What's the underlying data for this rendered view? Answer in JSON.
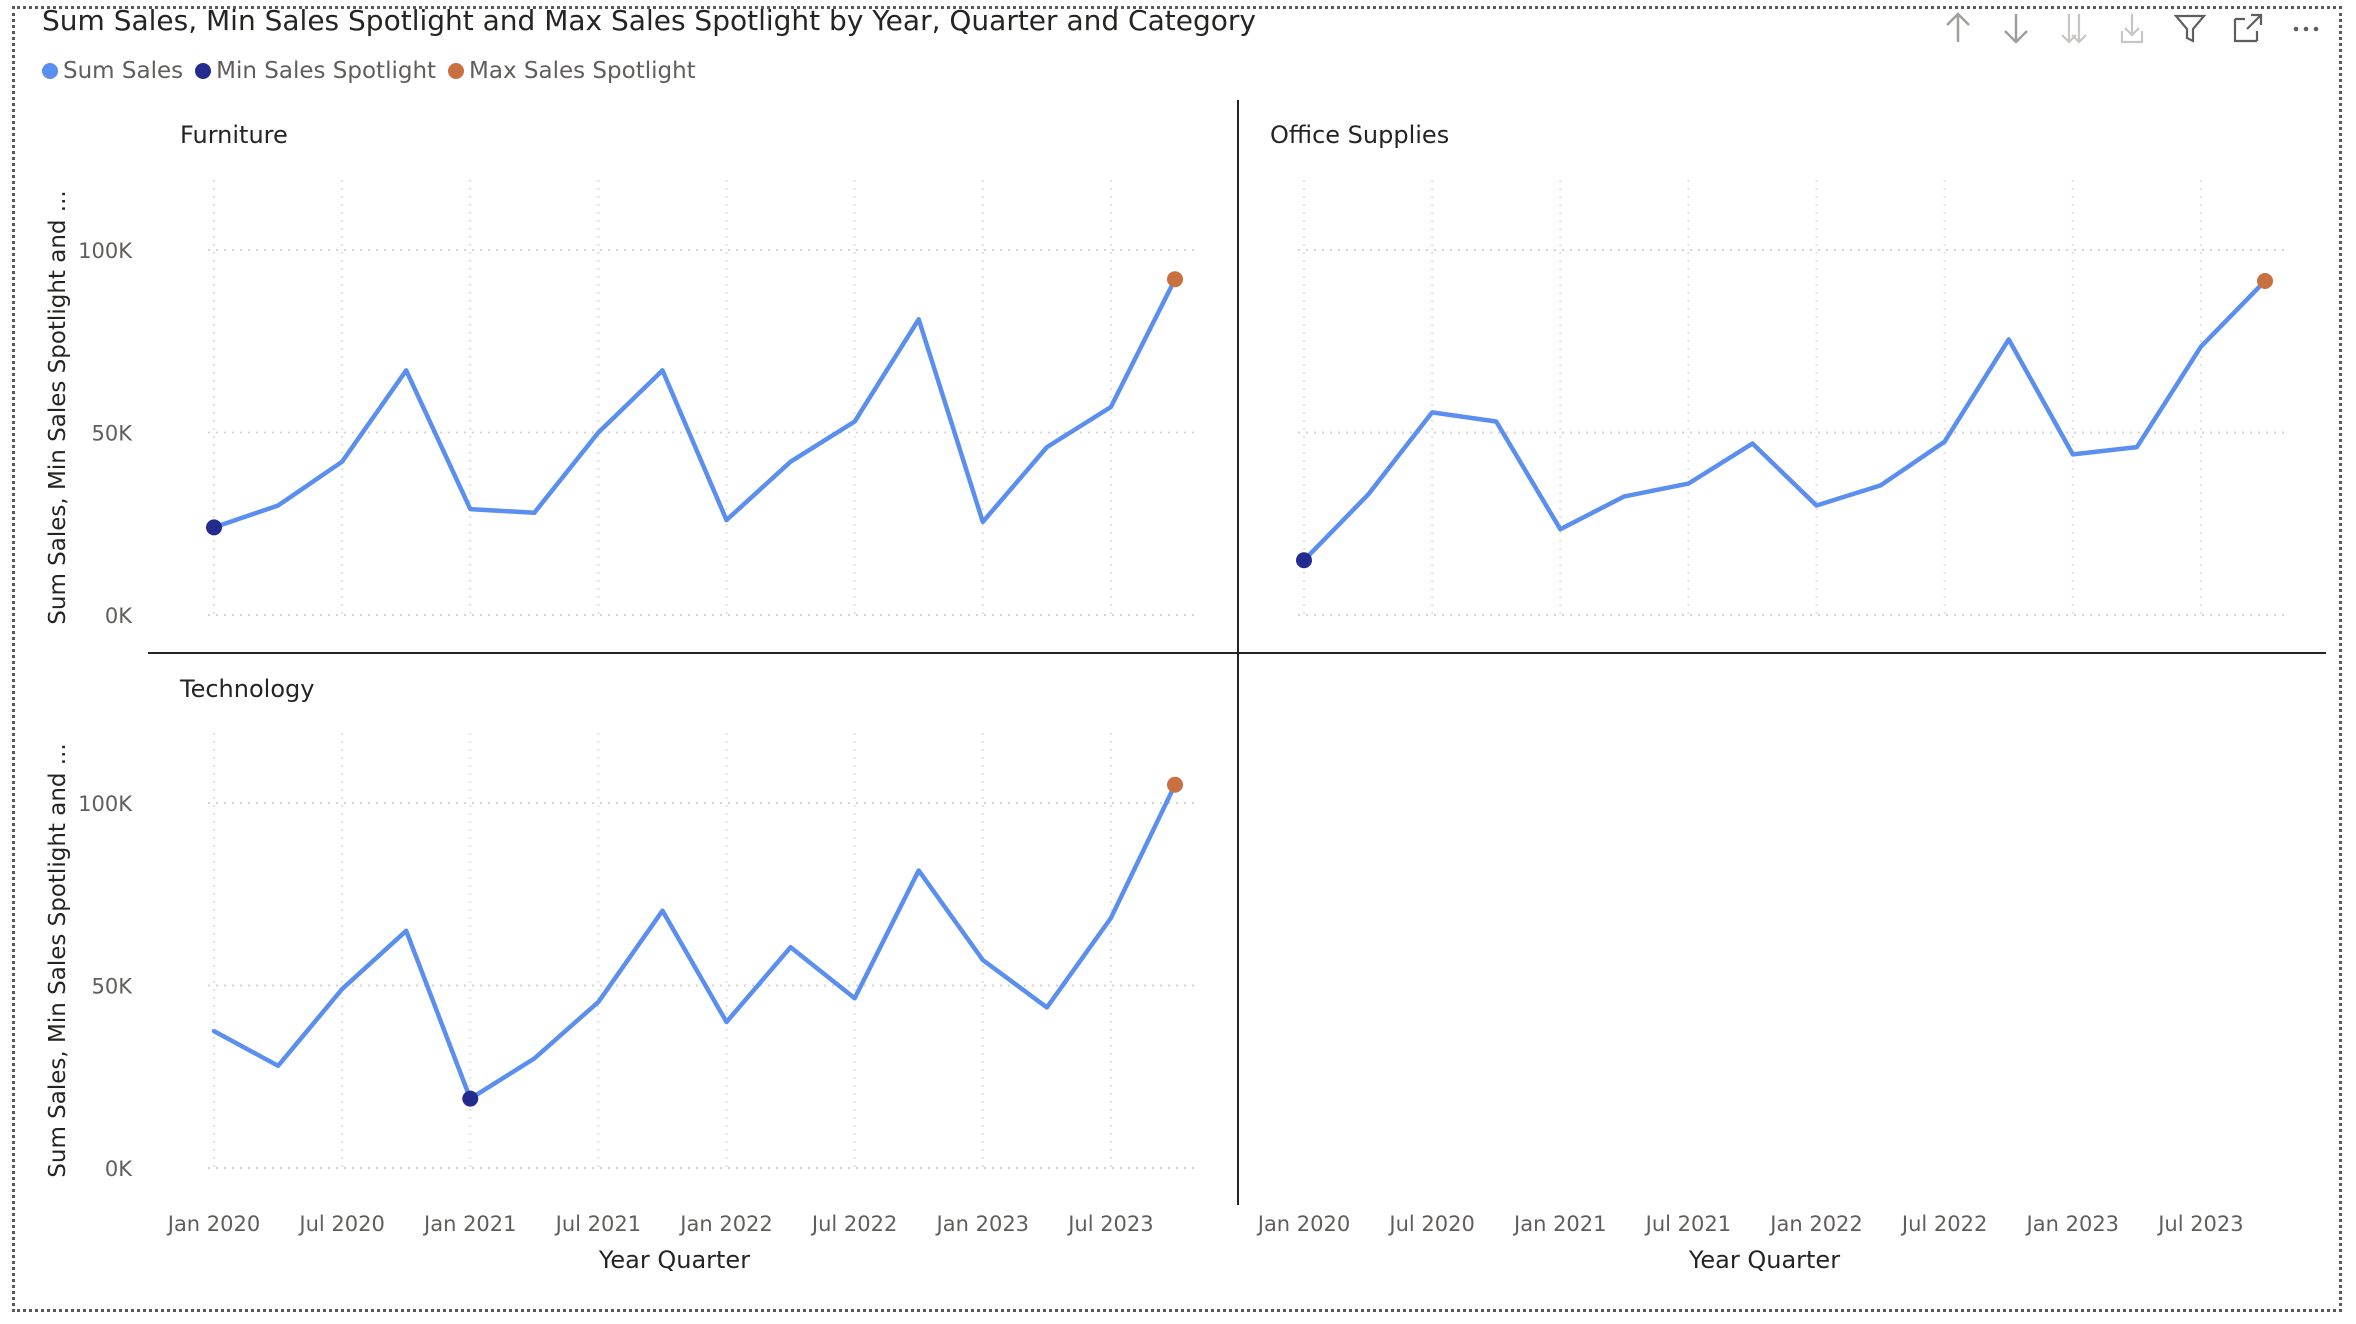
{
  "title": "Sum Sales, Min Sales Spotlight and Max Sales Spotlight by Year, Quarter and Category",
  "legend": [
    {
      "label": "Sum Sales",
      "color": "#5B8FEF"
    },
    {
      "label": "Min Sales Spotlight",
      "color": "#232C8E"
    },
    {
      "label": "Max Sales Spotlight",
      "color": "#C8703F"
    }
  ],
  "header_icons": [
    "drill-up-icon",
    "drill-down-icon",
    "expand-all-icon",
    "expand-next-level-icon",
    "filter-icon",
    "focus-mode-icon",
    "more-options-icon"
  ],
  "chart_data": {
    "type": "line",
    "small_multiples": true,
    "title": "Sum Sales, Min Sales Spotlight and Max Sales Spotlight by Year, Quarter and Category",
    "xlabel": "Year Quarter",
    "ylabel": "Sum Sales, Min Sales Spotlight and ...",
    "ylim": [
      0,
      120000
    ],
    "y_ticks": [
      0,
      50000,
      100000
    ],
    "y_tick_labels": [
      "0K",
      "50K",
      "100K"
    ],
    "x_tick_labels": [
      "Jan 2020",
      "Jul 2020",
      "Jan 2021",
      "Jul 2021",
      "Jan 2022",
      "Jul 2022",
      "Jan 2023",
      "Jul 2023"
    ],
    "categories": [
      "2020 Q1",
      "2020 Q2",
      "2020 Q3",
      "2020 Q4",
      "2021 Q1",
      "2021 Q2",
      "2021 Q3",
      "2021 Q4",
      "2022 Q1",
      "2022 Q2",
      "2022 Q3",
      "2022 Q4",
      "2023 Q1",
      "2023 Q2",
      "2023 Q3",
      "2023 Q4"
    ],
    "grid": true,
    "legend_position": "top-left",
    "panels": [
      {
        "category": "Furniture",
        "values": [
          24000,
          30000,
          42000,
          67000,
          29000,
          28000,
          50000,
          67000,
          26000,
          42000,
          53000,
          81000,
          25500,
          46000,
          57000,
          92000
        ],
        "min_index": 0,
        "max_index": 15
      },
      {
        "category": "Office Supplies",
        "values": [
          15000,
          33000,
          55500,
          53000,
          23500,
          32500,
          36000,
          47000,
          30000,
          35500,
          47500,
          75500,
          44000,
          46000,
          73500,
          91500
        ],
        "min_index": 0,
        "max_index": 15
      },
      {
        "category": "Technology",
        "values": [
          37500,
          28000,
          49000,
          65000,
          19000,
          30000,
          45500,
          70500,
          40000,
          60500,
          46500,
          81500,
          57000,
          44000,
          68500,
          105000
        ],
        "min_index": 4,
        "max_index": 15
      }
    ]
  }
}
